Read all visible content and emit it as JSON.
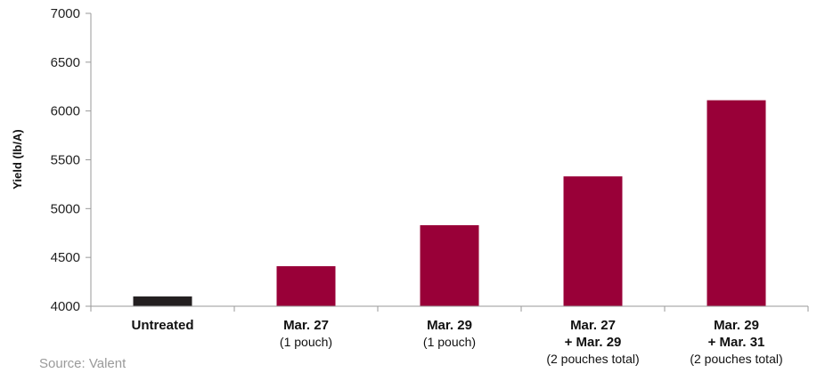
{
  "chart_data": {
    "type": "bar",
    "title": "",
    "xlabel": "",
    "ylabel": "Yield (lb/A)",
    "ylim": [
      4000,
      7000
    ],
    "yticks": [
      4000,
      4500,
      5000,
      5500,
      6000,
      6500,
      7000
    ],
    "grid": false,
    "legend": "none",
    "categories": [
      {
        "lines": [
          {
            "text": "Untreated",
            "bold": true
          }
        ]
      },
      {
        "lines": [
          {
            "text": "Mar. 27",
            "bold": true
          },
          {
            "text": "(1 pouch)",
            "bold": false
          }
        ]
      },
      {
        "lines": [
          {
            "text": "Mar. 29",
            "bold": true
          },
          {
            "text": "(1 pouch)",
            "bold": false
          }
        ]
      },
      {
        "lines": [
          {
            "text": "Mar. 27",
            "bold": true
          },
          {
            "text": "+ Mar. 29",
            "bold": true
          },
          {
            "text": "(2 pouches total)",
            "bold": false
          }
        ]
      },
      {
        "lines": [
          {
            "text": "Mar. 29",
            "bold": true
          },
          {
            "text": "+ Mar. 31",
            "bold": true
          },
          {
            "text": "(2 pouches total)",
            "bold": false
          }
        ]
      }
    ],
    "values": [
      4100,
      4410,
      4830,
      5330,
      6110
    ],
    "bar_colors": [
      "#231f20",
      "#990038",
      "#990038",
      "#990038",
      "#990038"
    ],
    "axis_color": "#9a9a9a"
  },
  "source": "Source: Valent"
}
